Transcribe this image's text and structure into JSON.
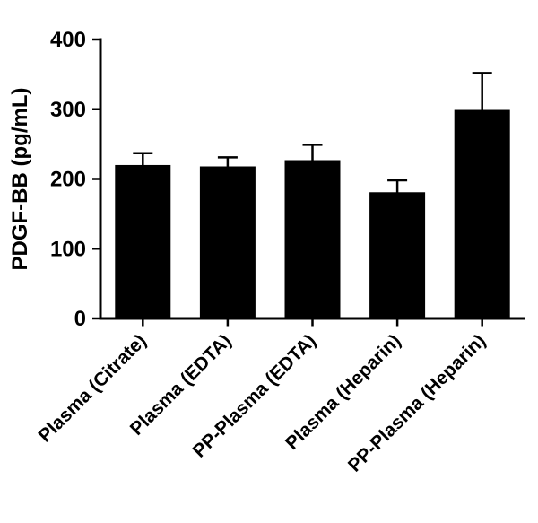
{
  "chart_data": {
    "type": "bar",
    "title": "",
    "xlabel": "",
    "ylabel": "PDGF-BB (pg/mL)",
    "categories": [
      "Plasma (Citrate)",
      "Plasma (EDTA)",
      "PP-Plasma (EDTA)",
      "Plasma (Heparin)",
      "PP-Plasma (Heparin)"
    ],
    "series": [
      {
        "name": "PDGF-BB",
        "values": [
          220,
          218,
          227,
          181,
          299
        ],
        "errors_upper": [
          17,
          13,
          22,
          17,
          53
        ]
      }
    ],
    "ylim": [
      0,
      400
    ],
    "yticks": [
      0,
      100,
      200,
      300,
      400
    ],
    "ytick_labels": [
      "0",
      "100",
      "200",
      "300",
      "400"
    ],
    "grid": false,
    "legend_position": "none",
    "bar_color": "#000000",
    "axis_color": "#000000",
    "error_bar_color": "#000000",
    "background_color": "#ffffff"
  }
}
